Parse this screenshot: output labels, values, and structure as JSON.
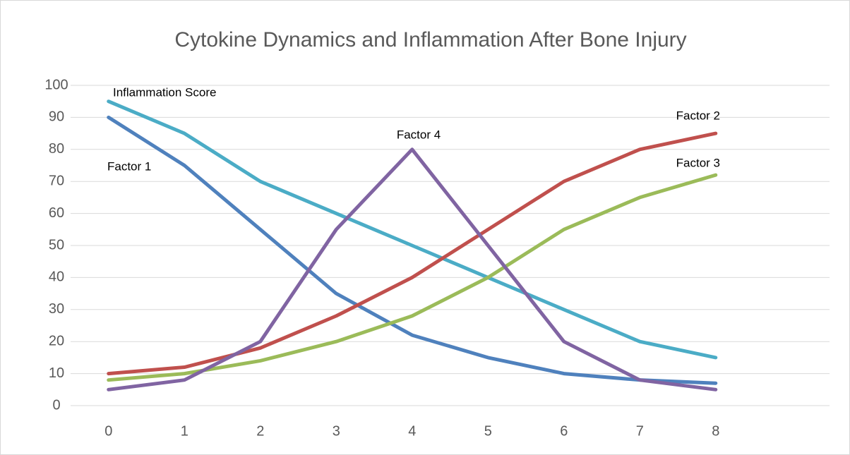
{
  "chart_data": {
    "type": "line",
    "title": "Cytokine Dynamics and Inflammation After Bone Injury",
    "x": [
      0,
      1,
      2,
      3,
      4,
      5,
      6,
      7,
      8
    ],
    "xlim": [
      -0.5,
      9.5
    ],
    "xticks": [
      0,
      1,
      2,
      3,
      4,
      5,
      6,
      7,
      8
    ],
    "ylim": [
      0,
      100
    ],
    "yticks": [
      0,
      10,
      20,
      30,
      40,
      50,
      60,
      70,
      80,
      90,
      100
    ],
    "grid": true,
    "series": [
      {
        "name": "Inflammation Score",
        "color": "#4bacc6",
        "values": [
          95,
          85,
          70,
          60,
          50,
          40,
          30,
          20,
          15
        ]
      },
      {
        "name": "Factor 1",
        "color": "#4f81bd",
        "values": [
          90,
          75,
          55,
          35,
          22,
          15,
          10,
          8,
          7
        ]
      },
      {
        "name": "Factor 2",
        "color": "#c0504d",
        "values": [
          10,
          12,
          18,
          28,
          40,
          55,
          70,
          80,
          85
        ]
      },
      {
        "name": "Factor 3",
        "color": "#9bbb59",
        "values": [
          8,
          10,
          14,
          20,
          28,
          40,
          55,
          65,
          72
        ]
      },
      {
        "name": "Factor 4",
        "color": "#8064a2",
        "values": [
          5,
          8,
          20,
          55,
          80,
          50,
          20,
          8,
          5
        ]
      }
    ]
  }
}
